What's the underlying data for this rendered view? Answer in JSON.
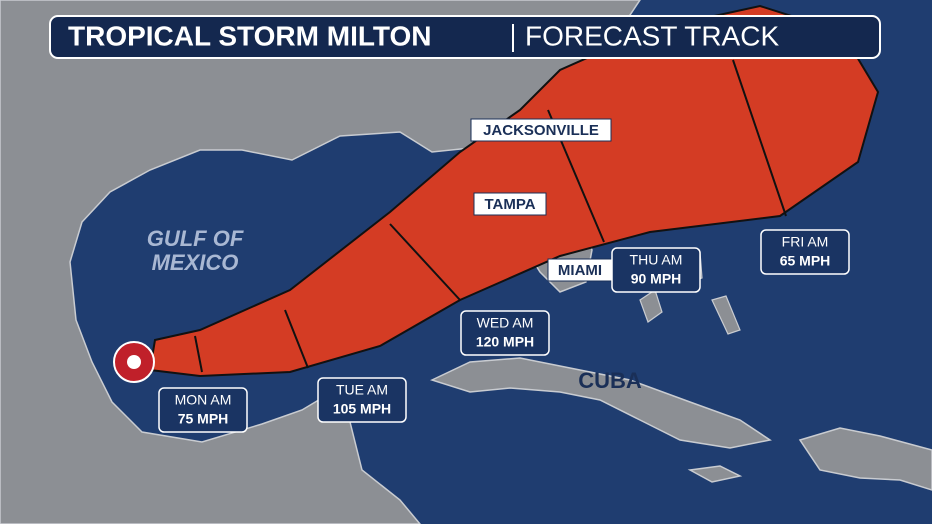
{
  "header": {
    "title": "TROPICAL STORM MILTON",
    "subtitle": "FORECAST TRACK"
  },
  "water_label": [
    "GULF OF",
    "MEXICO"
  ],
  "land_label": "CUBA",
  "cities": [
    "JACKSONVILLE",
    "TAMPA",
    "MIAMI"
  ],
  "forecast": [
    {
      "time": "MON AM",
      "intensity": "75 MPH"
    },
    {
      "time": "TUE AM",
      "intensity": "105 MPH"
    },
    {
      "time": "WED AM",
      "intensity": "120 MPH"
    },
    {
      "time": "THU AM",
      "intensity": "90 MPH"
    },
    {
      "time": "FRI AM",
      "intensity": "65 MPH"
    }
  ]
}
